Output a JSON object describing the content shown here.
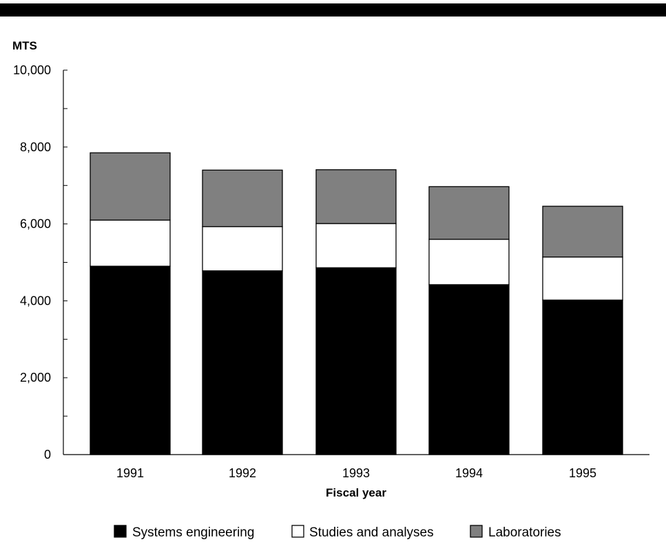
{
  "chart_data": {
    "type": "bar",
    "stacked": true,
    "ylabel": "MTS",
    "xlabel": "Fiscal year",
    "ylim": [
      0,
      10000
    ],
    "yticks": [
      {
        "value": 0,
        "label": "0"
      },
      {
        "value": 2000,
        "label": "2,000"
      },
      {
        "value": 4000,
        "label": "4,000"
      },
      {
        "value": 6000,
        "label": "6,000"
      },
      {
        "value": 8000,
        "label": "8,000"
      },
      {
        "value": 10000,
        "label": "10,000"
      }
    ],
    "yminor_step": 1000,
    "categories": [
      "1991",
      "1992",
      "1993",
      "1994",
      "1995"
    ],
    "series": [
      {
        "name": "Systems engineering",
        "color": "#000000",
        "values": [
          4900,
          4780,
          4860,
          4420,
          4020
        ]
      },
      {
        "name": "Studies and analyses",
        "color": "#ffffff",
        "values": [
          1200,
          1150,
          1150,
          1180,
          1120
        ]
      },
      {
        "name": "Laboratories",
        "color": "#808080",
        "values": [
          1750,
          1470,
          1400,
          1370,
          1320
        ]
      }
    ],
    "grid": false,
    "legend_position": "bottom"
  }
}
